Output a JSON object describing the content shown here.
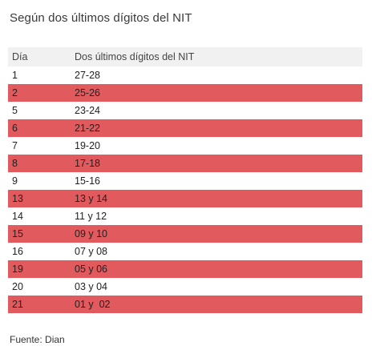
{
  "title": "Según dos últimos dígitos del NIT",
  "table": {
    "headers": [
      "Día",
      "Dos últimos dígitos del NIT"
    ],
    "rows": [
      [
        "1",
        "27-28"
      ],
      [
        "2",
        "25-26"
      ],
      [
        "5",
        "23-24"
      ],
      [
        "6",
        "21-22"
      ],
      [
        "7",
        "19-20"
      ],
      [
        "8",
        "17-18"
      ],
      [
        "9",
        "15-16"
      ],
      [
        "13",
        "13 y 14"
      ],
      [
        "14",
        "11 y 12"
      ],
      [
        "15",
        "09 y 10"
      ],
      [
        "16",
        "07 y 08"
      ],
      [
        "19",
        "05 y 06"
      ],
      [
        "20",
        "03 y 04"
      ],
      [
        "21",
        "01 y  02"
      ]
    ],
    "alt_row_color": "#e05a5e",
    "header_bg_color": "#f1f1f1"
  },
  "source": "Fuente: Dian"
}
